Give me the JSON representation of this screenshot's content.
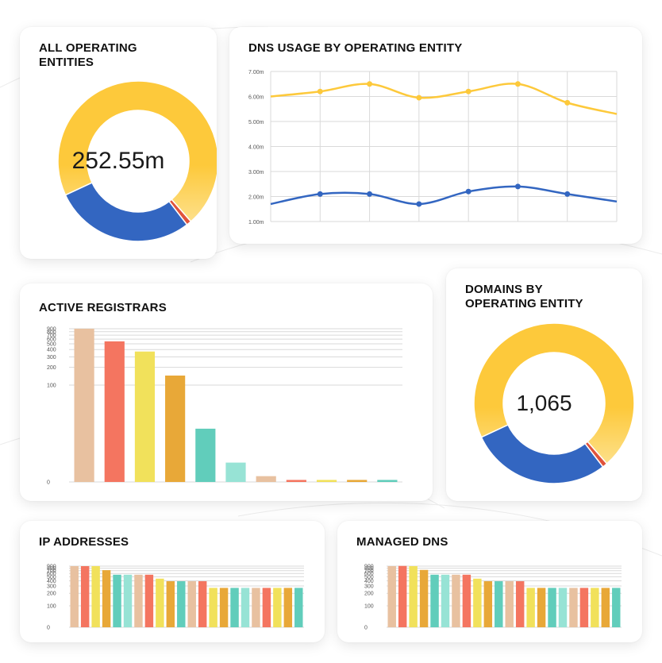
{
  "colors": {
    "yellow": "#FDC93B",
    "yellow_light": "#FDE08A",
    "blue": "#3366C1",
    "red": "#E0533C",
    "peach": "#E8C1A0",
    "salmon": "#F47560",
    "lemon": "#F1E15B",
    "orange": "#E8A838",
    "teal": "#61CDBB",
    "mint": "#97E3D5",
    "grid": "#D9D9D9",
    "card_bg": "#FFFFFF"
  },
  "cards": {
    "all_entities": {
      "title": "ALL OPERATING ENTITIES",
      "center_value": "252.55m"
    },
    "dns_usage": {
      "title": "DNS USAGE BY OPERATING ENTITY"
    },
    "active_registrars": {
      "title": "ACTIVE REGISTRARS"
    },
    "domains_by_entity": {
      "title": "DOMAINS BY OPERATING ENTITY",
      "center_value": "1,065"
    },
    "ip_addresses": {
      "title": "IP ADDRESSES"
    },
    "managed_dns": {
      "title": "MANAGED DNS"
    }
  },
  "chart_data": [
    {
      "id": "all_entities",
      "type": "pie",
      "title": "ALL OPERATING ENTITIES",
      "slices": [
        {
          "value": 70.5,
          "color": "yellow"
        },
        {
          "value": 1.0,
          "color": "red"
        },
        {
          "value": 28.5,
          "color": "blue"
        }
      ]
    },
    {
      "id": "dns_usage",
      "type": "line",
      "title": "DNS USAGE BY OPERATING ENTITY",
      "ylim": [
        1.0,
        7.0
      ],
      "yticks": [
        "1.00m",
        "2.00m",
        "3.00m",
        "4.00m",
        "5.00m",
        "6.00m",
        "7.00m"
      ],
      "x": [
        0,
        1,
        2,
        3,
        4,
        5,
        6,
        7
      ],
      "series": [
        {
          "color": "yellow",
          "values": [
            6.0,
            6.2,
            6.5,
            5.95,
            6.2,
            6.5,
            5.75,
            5.3
          ],
          "marker_idx": [
            1,
            2,
            3,
            4,
            5,
            6
          ]
        },
        {
          "color": "blue",
          "values": [
            1.7,
            2.1,
            2.1,
            1.7,
            2.2,
            2.4,
            2.1,
            1.8
          ],
          "marker_idx": [
            1,
            2,
            3,
            4,
            5,
            6
          ]
        }
      ]
    },
    {
      "id": "active_registrars",
      "type": "bar",
      "title": "ACTIVE REGISTRARS",
      "yticks": [
        "0",
        "100",
        "200",
        "300",
        "400",
        "500",
        "600",
        "700",
        "800",
        "900"
      ],
      "values": [
        900,
        550,
        370,
        145,
        55,
        20,
        6,
        2.1,
        2.1,
        2.1,
        2.1
      ],
      "colors": [
        "peach",
        "salmon",
        "lemon",
        "orange",
        "teal",
        "mint",
        "peach",
        "salmon",
        "lemon",
        "orange",
        "teal"
      ]
    },
    {
      "id": "domains_by_entity",
      "type": "pie",
      "title": "DOMAINS BY OPERATING ENTITY",
      "slices": [
        {
          "value": 70.5,
          "color": "yellow"
        },
        {
          "value": 1.0,
          "color": "red"
        },
        {
          "value": 28.5,
          "color": "blue"
        }
      ]
    },
    {
      "id": "ip_addresses",
      "type": "bar",
      "title": "IP ADDRESSES",
      "yticks": [
        "0",
        "100",
        "200",
        "300",
        "400",
        "500",
        "600",
        "700",
        "800",
        "900"
      ],
      "values": [
        900,
        900,
        900,
        720,
        560,
        560,
        560,
        560,
        450,
        390,
        390,
        390,
        390,
        270,
        270,
        270,
        270,
        270,
        270,
        270,
        270,
        270
      ],
      "colors": [
        "peach",
        "salmon",
        "lemon",
        "orange",
        "teal",
        "mint",
        "peach",
        "salmon",
        "lemon",
        "orange",
        "teal",
        "peach",
        "salmon",
        "lemon",
        "orange",
        "teal",
        "mint",
        "peach",
        "salmon",
        "lemon",
        "orange",
        "teal"
      ]
    },
    {
      "id": "managed_dns",
      "type": "bar",
      "title": "MANAGED DNS",
      "yticks": [
        "0",
        "100",
        "200",
        "300",
        "400",
        "500",
        "600",
        "700",
        "800",
        "900"
      ],
      "values": [
        900,
        910,
        900,
        730,
        560,
        560,
        560,
        560,
        450,
        390,
        390,
        390,
        390,
        270,
        270,
        270,
        270,
        270,
        270,
        270,
        270,
        270
      ],
      "colors": [
        "peach",
        "salmon",
        "lemon",
        "orange",
        "teal",
        "mint",
        "peach",
        "salmon",
        "lemon",
        "orange",
        "teal",
        "peach",
        "salmon",
        "lemon",
        "orange",
        "teal",
        "mint",
        "peach",
        "salmon",
        "lemon",
        "orange",
        "teal"
      ]
    }
  ]
}
